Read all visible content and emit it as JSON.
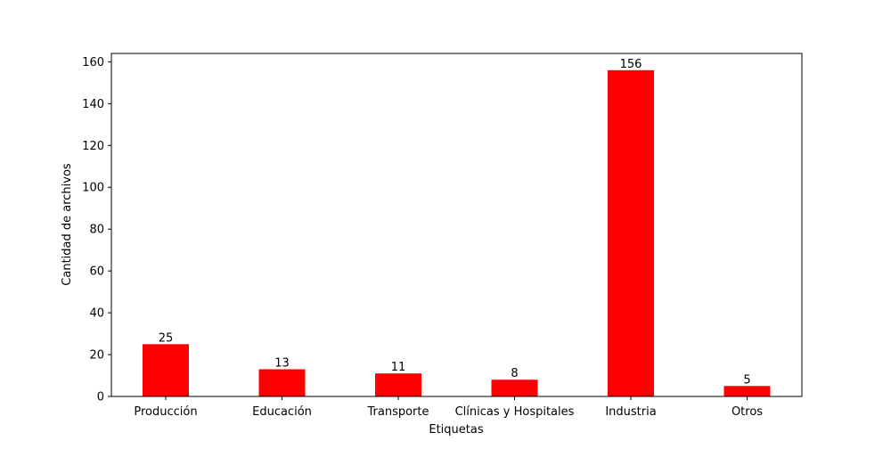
{
  "chart_data": {
    "type": "bar",
    "title": "",
    "xlabel": "Etiquetas",
    "ylabel": "Cantidad de archivos",
    "categories": [
      "Producción",
      "Educación",
      "Transporte",
      "Clínicas y Hospitales",
      "Industria",
      "Otros"
    ],
    "values": [
      25,
      13,
      11,
      8,
      156,
      5
    ],
    "value_labels": [
      "25",
      "13",
      "11",
      "8",
      "156",
      "5"
    ],
    "ylim": [
      0,
      164
    ],
    "yticks": [
      0,
      20,
      40,
      60,
      80,
      100,
      120,
      140,
      160
    ],
    "ytick_labels": [
      "0",
      "20",
      "40",
      "60",
      "80",
      "100",
      "120",
      "140",
      "160"
    ],
    "grid": false,
    "legend": "none",
    "bar_color": "#ff0000"
  }
}
